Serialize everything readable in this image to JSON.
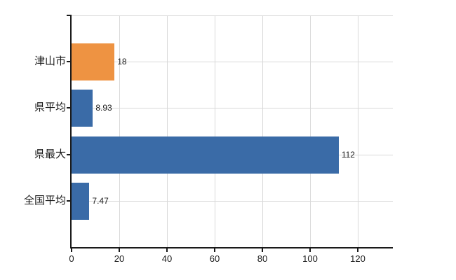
{
  "chart_data": {
    "type": "bar",
    "orientation": "horizontal",
    "title": "",
    "xlabel": "",
    "ylabel": "",
    "categories": [
      "津山市",
      "県平均",
      "県最大",
      "全国平均"
    ],
    "values": [
      18,
      8.93,
      112,
      7.47
    ],
    "value_labels": [
      "18",
      "8.93",
      "112",
      "7.47"
    ],
    "bar_colors": [
      "#ee9342",
      "#3a6ba7",
      "#3a6ba7",
      "#3a6ba7"
    ],
    "xticks": [
      0,
      20,
      40,
      60,
      80,
      100,
      120
    ],
    "xtick_labels": [
      "0",
      "20",
      "40",
      "60",
      "80",
      "100",
      "120"
    ],
    "xlim": [
      0,
      134.7
    ],
    "grid": true,
    "legend": "none",
    "colors": {
      "axis": "#1a1a1a",
      "grid": "#d9d9d9",
      "text": "#1a1a1a",
      "background": "#ffffff"
    }
  }
}
